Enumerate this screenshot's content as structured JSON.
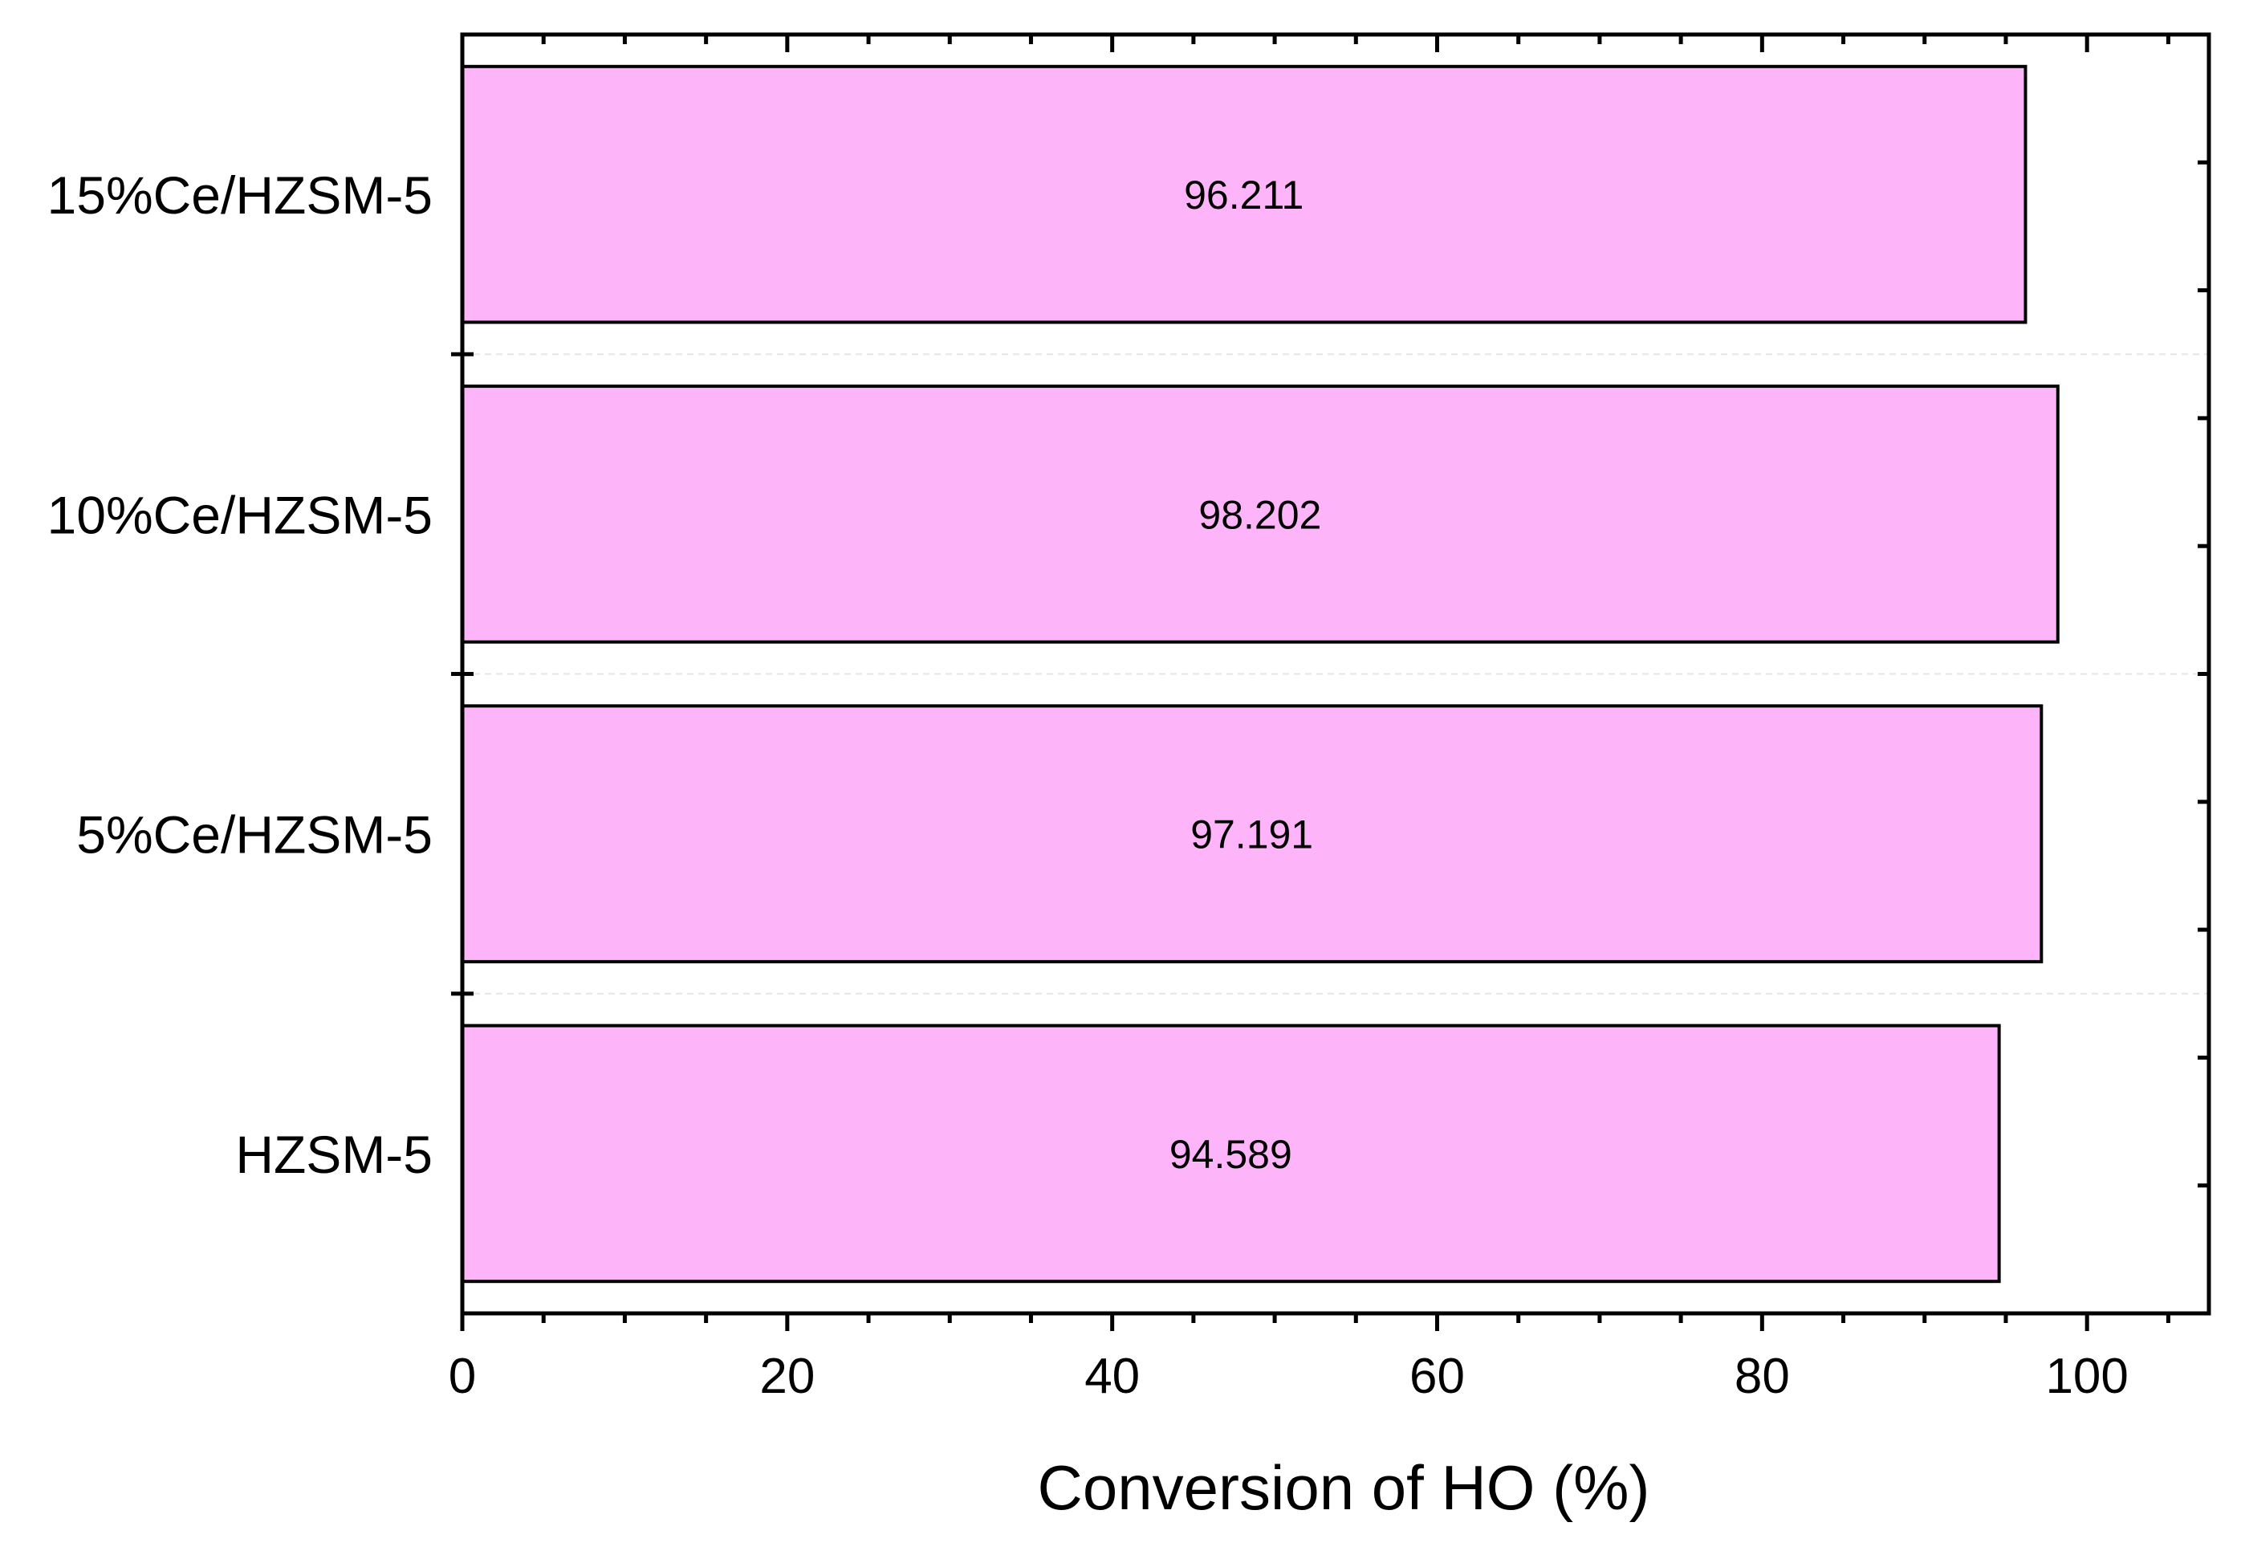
{
  "chart_data": {
    "type": "bar",
    "orientation": "horizontal",
    "categories": [
      "HZSM-5",
      "5%Ce/HZSM-5",
      "10%Ce/HZSM-5",
      "15%Ce/HZSM-5"
    ],
    "values": [
      94.589,
      97.191,
      98.202,
      96.211
    ],
    "data_labels": [
      "94.589",
      "97.191",
      "98.202",
      "96.211"
    ],
    "xlabel": "Conversion of HO (%)",
    "ylabel": "",
    "title": "",
    "xlim": [
      0,
      107.5
    ],
    "xticks": [
      0,
      20,
      40,
      60,
      80,
      100
    ],
    "xtick_labels": [
      "0",
      "20",
      "40",
      "60",
      "80",
      "100"
    ],
    "grid": false,
    "legend": "none",
    "colors": {
      "bar_fill": "#fdb4f8",
      "bar_stroke": "#000000",
      "axis": "#000000",
      "separator": "#e6e6e6",
      "background": "#ffffff"
    }
  }
}
